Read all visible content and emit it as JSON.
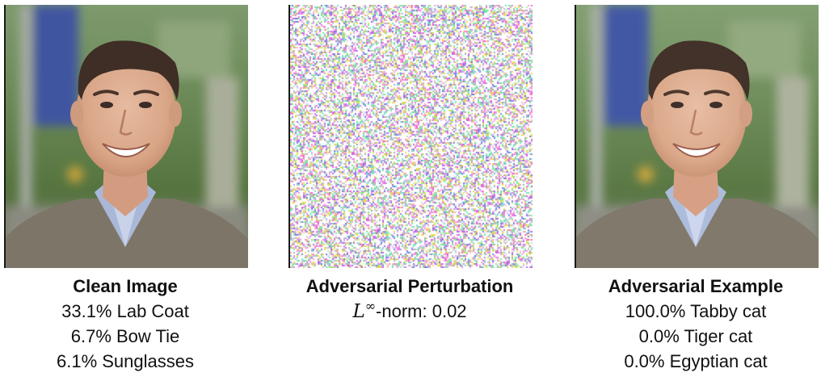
{
  "panels": {
    "clean": {
      "title": "Clean Image",
      "predictions": [
        "33.1% Lab Coat",
        "6.7% Bow Tie",
        "6.1% Sunglasses"
      ]
    },
    "perturbation": {
      "title": "Adversarial Perturbation",
      "norm_symbol": "L",
      "norm_superscript": "∞",
      "norm_text": "-norm: 0.02"
    },
    "adversarial": {
      "title": "Adversarial Example",
      "predictions": [
        "100.0% Tabby cat",
        "0.0% Tiger cat",
        "0.0% Egyptian cat"
      ]
    }
  }
}
